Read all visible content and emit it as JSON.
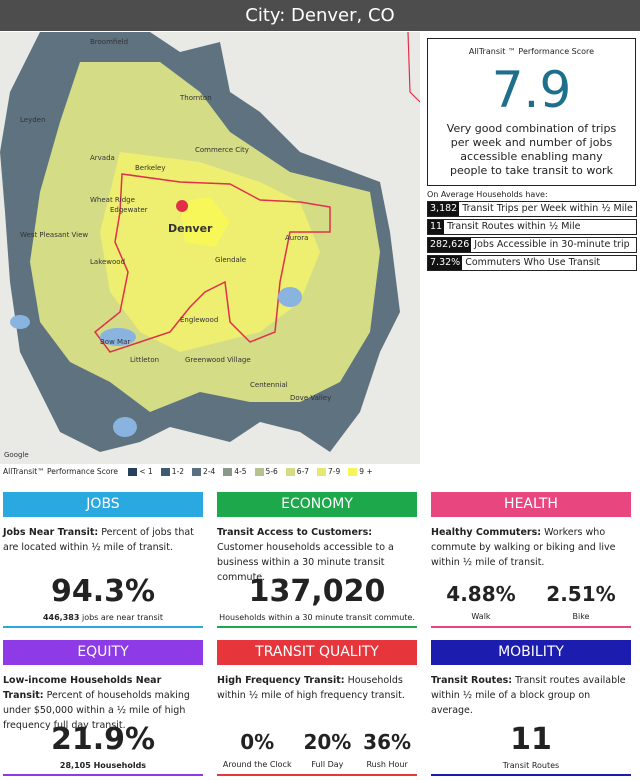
{
  "header": {
    "title": "City: Denver, CO"
  },
  "map": {
    "labels": [
      "Broomfield",
      "Leyden",
      "Thornton",
      "Arvada",
      "Berkeley",
      "Commerce City",
      "Wheat Ridge",
      "Edgewater",
      "Denver",
      "West Pleasant View",
      "Lakewood",
      "Aurora",
      "Glendale",
      "Englewood",
      "Littleton",
      "Bow Mar",
      "Greenwood Village",
      "Centennial",
      "Dove Valley",
      "Google"
    ],
    "legend": {
      "title": "AllTransit™ Performance Score",
      "items": [
        {
          "label": "< 1",
          "color": "#24405a"
        },
        {
          "label": "1-2",
          "color": "#3d5a72"
        },
        {
          "label": "2-4",
          "color": "#5b7183"
        },
        {
          "label": "4-5",
          "color": "#8a9a8a"
        },
        {
          "label": "5-6",
          "color": "#b7c38c"
        },
        {
          "label": "6-7",
          "color": "#d4dc86"
        },
        {
          "label": "7-9",
          "color": "#e6e874"
        },
        {
          "label": "9 +",
          "color": "#f6f55c"
        }
      ]
    }
  },
  "score": {
    "title": "AllTransit ™ Performance Score",
    "value": "7.9",
    "description": "Very good combination of trips per week and number of jobs accessible enabling many people to take transit to work"
  },
  "averages": {
    "title": "On Average Households have:",
    "rows": [
      {
        "value": "3,182",
        "label": "Transit Trips per Week within ½ Mile"
      },
      {
        "value": "11",
        "label": "Transit Routes within ½ Mile"
      },
      {
        "value": "282,626",
        "label": "Jobs Accessible in 30-minute trip"
      },
      {
        "value": "7.32%",
        "label": "Commuters Who Use Transit"
      }
    ]
  },
  "panels": [
    {
      "title": "JOBS",
      "color": "#2aa9e0",
      "label": "Jobs Near Transit:",
      "text": "Percent of jobs that are located within ½ mile of transit.",
      "stats": [
        {
          "value": "94.3%",
          "caption_bold": "446,383",
          "caption": "jobs are near transit"
        }
      ]
    },
    {
      "title": "ECONOMY",
      "color": "#1ca84b",
      "label": "Transit Access to Customers:",
      "text": "Customer households accessible to a business within a 30 minute transit commute.",
      "stats": [
        {
          "value": "137,020",
          "caption": "Households within a 30 minute transit commute."
        }
      ]
    },
    {
      "title": "HEALTH",
      "color": "#e8467f",
      "label": "Healthy Commuters:",
      "text": "Workers who commute by walking or biking and live within ½ mile of transit.",
      "stats": [
        {
          "value": "4.88%",
          "caption": "Walk"
        },
        {
          "value": "2.51%",
          "caption": "Bike"
        }
      ]
    },
    {
      "title": "EQUITY",
      "color": "#8e3ae6",
      "label": "Low-income Households Near Transit:",
      "text": "Percent of households making under $50,000 within a ½ mile of high frequency full day transit.",
      "stats": [
        {
          "value": "21.9%",
          "caption_bold": "28,105 Households"
        }
      ]
    },
    {
      "title": "TRANSIT QUALITY",
      "color": "#e6353b",
      "label": "High Frequency Transit:",
      "text": "Households within ½ mile of high frequency transit.",
      "stats": [
        {
          "value": "0%",
          "caption": "Around the Clock"
        },
        {
          "value": "20%",
          "caption": "Full Day"
        },
        {
          "value": "36%",
          "caption": "Rush Hour"
        }
      ]
    },
    {
      "title": "MOBILITY",
      "color": "#1c1cae",
      "label": "Transit Routes:",
      "text": "Transit routes available within ½ mile of a block group on average.",
      "stats": [
        {
          "value": "11",
          "caption": "Transit Routes"
        }
      ]
    }
  ]
}
